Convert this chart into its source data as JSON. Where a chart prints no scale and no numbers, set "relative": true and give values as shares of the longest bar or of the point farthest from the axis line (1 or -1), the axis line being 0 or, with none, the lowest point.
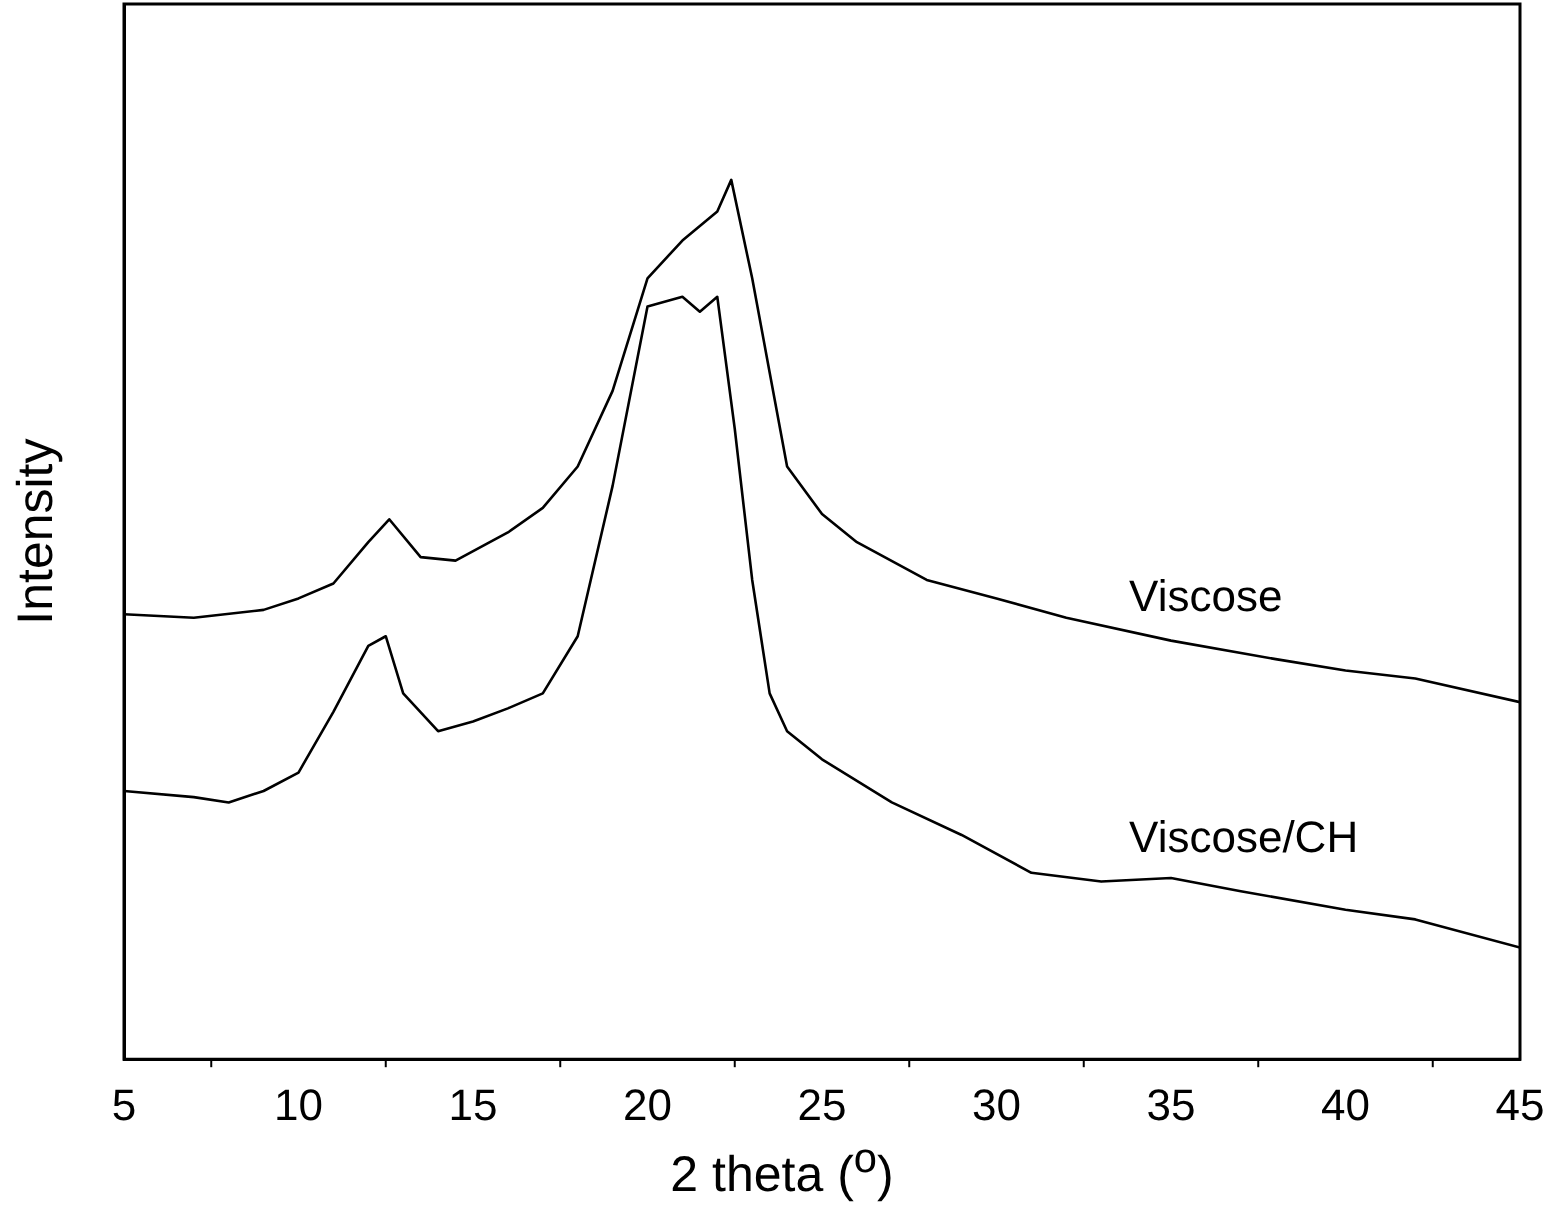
{
  "chart_data": {
    "type": "line",
    "xlabel": "2 theta ($^{o}$)",
    "ylabel": "Intensity",
    "relative": true,
    "xlim": [
      5,
      45
    ],
    "xticks": [
      5,
      10,
      15,
      20,
      25,
      30,
      35,
      40,
      45
    ],
    "legend": false,
    "grid": false,
    "marker": "none",
    "tick_labels": "x",
    "series": [
      {
        "name": "Viscose",
        "color": "#000000",
        "x": [
          5,
          7,
          9,
          10,
          11,
          12,
          12.6,
          13.5,
          14.5,
          16,
          17,
          18,
          19,
          20,
          21,
          22,
          22.4,
          23,
          23.5,
          24,
          25,
          26,
          28,
          30,
          32,
          35,
          38,
          40,
          42,
          45
        ],
        "values": [
          0.506,
          0.502,
          0.511,
          0.524,
          0.541,
          0.588,
          0.614,
          0.571,
          0.567,
          0.599,
          0.627,
          0.674,
          0.76,
          0.888,
          0.931,
          0.964,
          1.0,
          0.888,
          0.781,
          0.674,
          0.62,
          0.588,
          0.545,
          0.524,
          0.502,
          0.476,
          0.455,
          0.442,
          0.433,
          0.406
        ]
      },
      {
        "name": "Viscose/CH",
        "color": "#000000",
        "x": [
          5,
          7,
          8,
          9,
          10,
          11,
          12,
          12.5,
          13,
          14,
          15,
          16,
          17,
          18,
          19,
          20,
          21,
          21.5,
          22,
          22.5,
          23,
          23.5,
          24,
          25,
          27,
          29,
          31,
          33,
          35,
          37,
          40,
          42,
          45
        ],
        "values": [
          0.305,
          0.298,
          0.292,
          0.305,
          0.326,
          0.395,
          0.47,
          0.481,
          0.416,
          0.373,
          0.384,
          0.399,
          0.416,
          0.481,
          0.652,
          0.856,
          0.867,
          0.85,
          0.867,
          0.717,
          0.545,
          0.416,
          0.373,
          0.341,
          0.292,
          0.255,
          0.212,
          0.202,
          0.206,
          0.191,
          0.17,
          0.159,
          0.127
        ]
      }
    ]
  }
}
